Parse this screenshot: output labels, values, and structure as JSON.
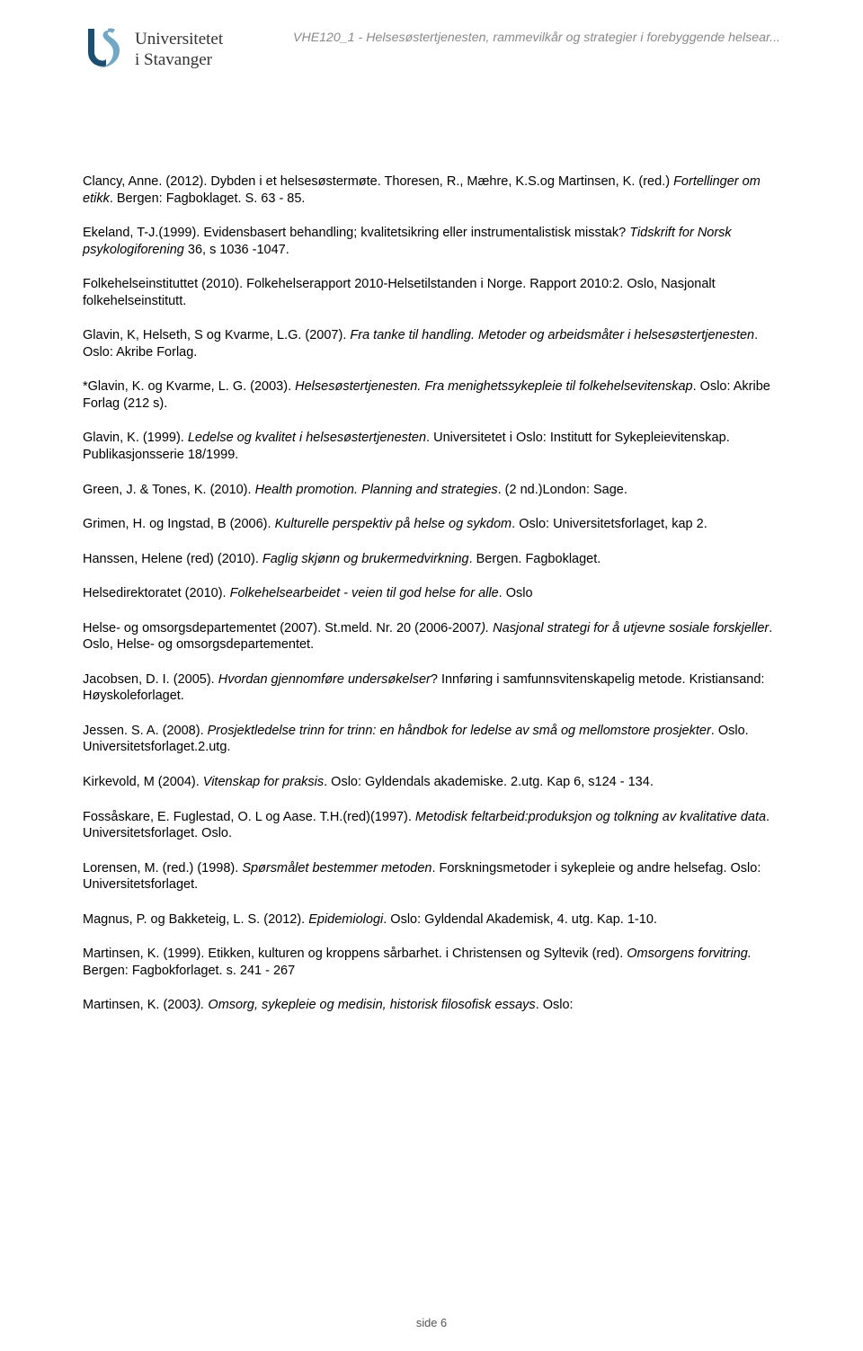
{
  "header": {
    "institution_line1": "Universitetet",
    "institution_line2": "i Stavanger",
    "course_title": "VHE120_1 - Helsesøstertjenesten, rammevilkår og strategier i forebyggende helsear...",
    "logo_color_dark": "#1a4f73",
    "logo_color_light": "#6fa8c7"
  },
  "colors": {
    "body_text": "#000000",
    "header_course_text": "#8a8a8a",
    "logo_text": "#333333",
    "footer_text": "#555555",
    "background": "#ffffff"
  },
  "typography": {
    "body_font": "Verdana",
    "body_size_pt": 11,
    "logo_font": "Georgia",
    "logo_size_pt": 14,
    "course_title_size_pt": 10.5,
    "footer_size_pt": 9.5
  },
  "references": [
    {
      "pre": "Clancy, Anne. (2012). Dybden i et helsesøstermøte. Thoresen, R., Mæhre, K.S.og Martinsen, K. (red.) ",
      "ital": "Fortellinger om etikk",
      "post": ". Bergen: Fagboklaget. S. 63 - 85."
    },
    {
      "pre": "Ekeland, T-J.(1999). Evidensbasert behandling; kvalitetsikring eller instrumentalistisk misstak? ",
      "ital": "Tidskrift for Norsk psykologiforening",
      "post": " 36, s 1036 -1047."
    },
    {
      "pre": "Folkehelseinstituttet (2010). Folkehelserapport 2010-Helsetilstanden i Norge. Rapport 2010:2. Oslo, Nasjonalt folkehelseinstitutt.",
      "ital": "",
      "post": ""
    },
    {
      "pre": "Glavin, K, Helseth, S og Kvarme, L.G. (2007). ",
      "ital": "Fra tanke til handling. Metoder og arbeidsmåter i helsesøstertjenesten",
      "post": ". Oslo: Akribe Forlag."
    },
    {
      "pre": "*Glavin, K. og Kvarme, L. G. (2003). ",
      "ital": "Helsesøstertjenesten. Fra menighetssykepleie til folkehelsevitenskap",
      "post": ". Oslo: Akribe Forlag (212 s)."
    },
    {
      "pre": "Glavin, K. (1999). ",
      "ital": "Ledelse og kvalitet i helsesøstertjenesten",
      "post": ". Universitetet i Oslo: Institutt for Sykepleievitenskap. Publikasjonsserie 18/1999."
    },
    {
      "pre": "Green, J. & Tones, K. (2010). ",
      "ital": "Health promotion. Planning and strategies",
      "post": ". (2 nd.)London: Sage."
    },
    {
      "pre": "Grimen, H. og Ingstad, B (2006). ",
      "ital": "Kulturelle perspektiv på helse og sykdom",
      "post": ". Oslo: Universitetsforlaget, kap 2."
    },
    {
      "pre": "Hanssen, Helene (red) (2010). ",
      "ital": "Faglig skjønn og brukermedvirkning",
      "post": ". Bergen. Fagboklaget."
    },
    {
      "pre": "Helsedirektoratet (2010). ",
      "ital": "Folkehelsearbeidet - veien til god helse for alle",
      "post": ". Oslo"
    },
    {
      "pre": "Helse- og omsorgsdepartementet (2007). St.meld. Nr. 20 (2006-2007",
      "ital": "). Nasjonal strategi for å utjevne sosiale forskjeller",
      "post": ". Oslo, Helse- og omsorgsdepartementet."
    },
    {
      "pre": "Jacobsen, D. I. (2005). ",
      "ital": "Hvordan gjennomføre undersøkelser",
      "post": "? Innføring i samfunnsvitenskapelig metode. Kristiansand: Høyskoleforlaget."
    },
    {
      "pre": "Jessen. S. A. (2008). ",
      "ital": "Prosjektledelse trinn for trinn: en håndbok for ledelse av små og mellomstore prosjekter",
      "post": ". Oslo. Universitetsforlaget.2.utg."
    },
    {
      "pre": "Kirkevold, M (2004). ",
      "ital": "Vitenskap for praksis",
      "post": ". Oslo: Gyldendals akademiske. 2.utg. Kap 6, s124 - 134."
    },
    {
      "pre": "Fossåskare, E. Fuglestad, O. L og Aase. T.H.(red)(1997). ",
      "ital": "Metodisk feltarbeid:produksjon og tolkning av kvalitative data",
      "post": ". Universitetsforlaget. Oslo."
    },
    {
      "pre": "Lorensen, M. (red.) (1998). ",
      "ital": "Spørsmålet bestemmer metoden",
      "post": ". Forskningsmetoder i sykepleie og andre helsefag. Oslo: Universitetsforlaget."
    },
    {
      "pre": "Magnus, P. og Bakketeig, L. S. (2012). ",
      "ital": "Epidemiologi",
      "post": ". Oslo: Gyldendal Akademisk, 4. utg. Kap. 1-10."
    },
    {
      "pre": "Martinsen, K. (1999). Etikken, kulturen og kroppens sårbarhet. i Christensen og Syltevik (red). ",
      "ital": "Omsorgens forvitring.",
      "post": " Bergen: Fagbokforlaget. s. 241 - 267"
    },
    {
      "pre": "Martinsen, K. (2003",
      "ital": "). Omsorg, sykepleie og medisin, historisk filosofisk essays",
      "post": ". Oslo:"
    }
  ],
  "footer": {
    "page_label": "side 6"
  }
}
